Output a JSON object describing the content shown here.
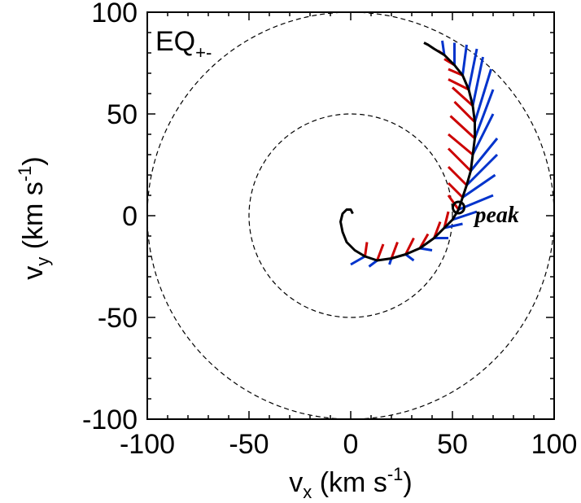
{
  "chart_data": {
    "type": "line",
    "panel_label": {
      "main": "EQ",
      "sub": "+-"
    },
    "xlabel": {
      "base": "v",
      "sub": "x",
      "unit_pre": " (km s",
      "sup": "-1",
      "unit_post": ")"
    },
    "ylabel": {
      "base": "v",
      "sub": "y",
      "unit_pre": " (km s",
      "sup": "-1",
      "unit_post": ")"
    },
    "xlim": [
      -100,
      100
    ],
    "ylim": [
      -100,
      100
    ],
    "xticks": [
      -100,
      -50,
      0,
      50,
      100
    ],
    "yticks": [
      -100,
      -50,
      0,
      50,
      100
    ],
    "xtick_labels": [
      "-100",
      "-50",
      "0",
      "50",
      "100"
    ],
    "ytick_labels": [
      "-100",
      "-50",
      "0",
      "50",
      "100"
    ],
    "grid": false,
    "reference_circles": [
      {
        "radius": 50,
        "style": "dashed"
      },
      {
        "radius": 100,
        "style": "dashed"
      }
    ],
    "hodograph": {
      "color": "#000000",
      "points": [
        [
          1,
          1
        ],
        [
          0,
          3
        ],
        [
          -2,
          3
        ],
        [
          -4,
          1
        ],
        [
          -5,
          -3
        ],
        [
          -4,
          -8
        ],
        [
          -2,
          -13
        ],
        [
          2,
          -17
        ],
        [
          7,
          -20
        ],
        [
          13,
          -22
        ],
        [
          20,
          -21
        ],
        [
          27,
          -19
        ],
        [
          34,
          -16
        ],
        [
          41,
          -11
        ],
        [
          46,
          -6
        ],
        [
          50,
          -2
        ],
        [
          53,
          3
        ],
        [
          55,
          9
        ],
        [
          57,
          15
        ],
        [
          59,
          22
        ],
        [
          60,
          30
        ],
        [
          61,
          38
        ],
        [
          61,
          46
        ],
        [
          60,
          54
        ],
        [
          58,
          62
        ],
        [
          55,
          69
        ],
        [
          51,
          74
        ],
        [
          46,
          79
        ],
        [
          41,
          82
        ],
        [
          38,
          84
        ],
        [
          36,
          85
        ]
      ]
    },
    "peak": {
      "label": "peak",
      "x": 53,
      "y": 4
    },
    "vector_series": [
      {
        "name": "",
        "color": "#cc0000",
        "vectors": [
          [
            7,
            -20,
            8,
            -13
          ],
          [
            13,
            -22,
            16,
            -14
          ],
          [
            20,
            -21,
            23,
            -13
          ],
          [
            27,
            -19,
            31,
            -11
          ],
          [
            34,
            -16,
            38,
            -9
          ],
          [
            41,
            -11,
            44,
            -3
          ],
          [
            46,
            -6,
            48,
            2
          ],
          [
            53,
            3,
            48,
            10
          ],
          [
            55,
            9,
            48,
            16
          ],
          [
            57,
            15,
            48,
            24
          ],
          [
            59,
            22,
            48,
            33
          ],
          [
            60,
            30,
            48,
            40
          ],
          [
            61,
            38,
            49,
            49
          ],
          [
            61,
            46,
            51,
            56
          ],
          [
            60,
            54,
            50,
            63
          ],
          [
            58,
            62,
            48,
            67
          ],
          [
            55,
            69,
            48,
            72
          ],
          [
            51,
            74,
            46,
            77
          ],
          [
            46,
            79,
            43,
            81
          ]
        ]
      },
      {
        "name": "",
        "color": "#0033cc",
        "vectors": [
          [
            7,
            -20,
            0,
            -24
          ],
          [
            13,
            -22,
            9,
            -25
          ],
          [
            20,
            -21,
            19,
            -24
          ],
          [
            27,
            -19,
            31,
            -22
          ],
          [
            34,
            -16,
            40,
            -17
          ],
          [
            41,
            -11,
            48,
            -11
          ],
          [
            46,
            -6,
            55,
            -4
          ],
          [
            50,
            -2,
            62,
            2
          ],
          [
            53,
            3,
            70,
            10
          ],
          [
            55,
            9,
            71,
            20
          ],
          [
            57,
            15,
            72,
            30
          ],
          [
            59,
            22,
            72,
            38
          ],
          [
            60,
            30,
            70,
            50
          ],
          [
            61,
            38,
            70,
            62
          ],
          [
            61,
            46,
            69,
            72
          ],
          [
            60,
            54,
            65,
            78
          ],
          [
            58,
            62,
            62,
            82
          ],
          [
            55,
            69,
            57,
            84
          ],
          [
            51,
            74,
            51,
            85
          ],
          [
            46,
            79,
            45,
            86
          ]
        ]
      }
    ]
  }
}
